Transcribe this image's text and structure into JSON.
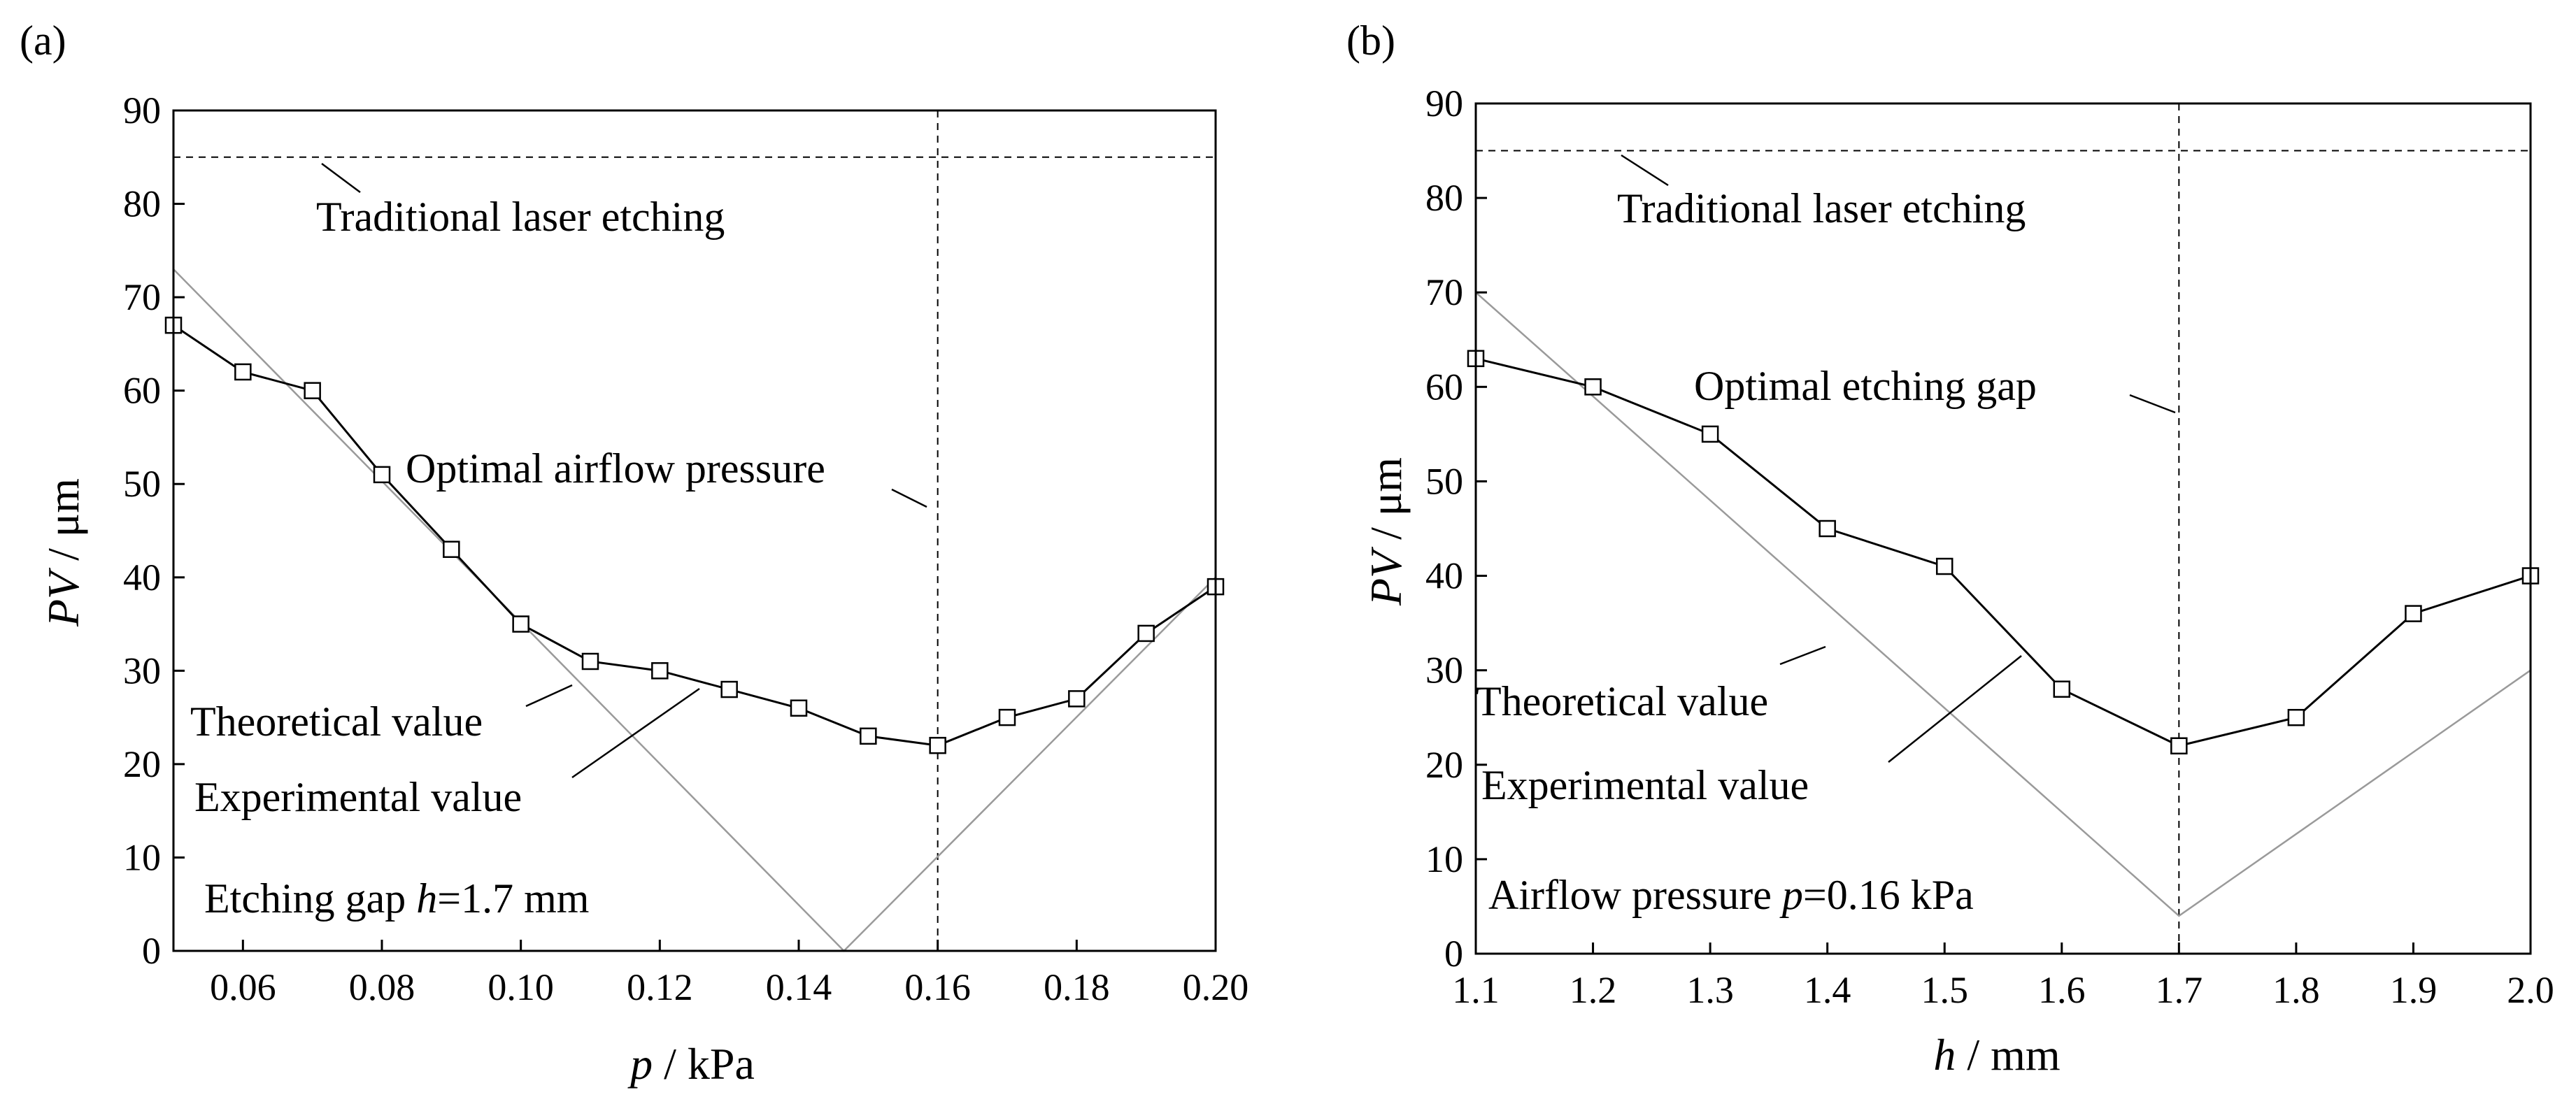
{
  "chart_data": [
    {
      "type": "line",
      "panel_label": "(a)",
      "xlabel_var": "p",
      "xlabel_unit": " / kPa",
      "ylabel_var": "PV",
      "ylabel_unit": " / μm",
      "xlim": [
        0.05,
        0.2
      ],
      "ylim": [
        0,
        90
      ],
      "xticks": [
        0.06,
        0.08,
        0.1,
        0.12,
        0.14,
        0.16,
        0.18,
        0.2
      ],
      "xtick_labels": [
        "0.06",
        "0.08",
        "0.10",
        "0.12",
        "0.14",
        "0.16",
        "0.18",
        "0.20"
      ],
      "yticks": [
        0,
        10,
        20,
        30,
        40,
        50,
        60,
        70,
        80,
        90
      ],
      "ytick_labels": [
        "0",
        "10",
        "20",
        "30",
        "40",
        "50",
        "60",
        "70",
        "80",
        "90"
      ],
      "series": [
        {
          "name": "Experimental value",
          "x": [
            0.05,
            0.06,
            0.07,
            0.08,
            0.09,
            0.1,
            0.11,
            0.12,
            0.13,
            0.14,
            0.15,
            0.16,
            0.17,
            0.18,
            0.19,
            0.2
          ],
          "y": [
            67,
            62,
            60,
            51,
            43,
            35,
            31,
            30,
            28,
            26,
            23,
            22,
            25,
            27,
            34,
            39
          ]
        },
        {
          "name": "Theoretical value",
          "x": [
            0.05,
            0.1465,
            0.2
          ],
          "y": [
            73,
            0,
            40
          ]
        }
      ],
      "reference_lines": [
        {
          "name": "Traditional laser etching",
          "orientation": "horizontal",
          "value": 85
        },
        {
          "name": "Optimal airflow pressure",
          "orientation": "vertical",
          "value": 0.16
        }
      ],
      "annotations": {
        "traditional": "Traditional laser etching",
        "optimal": "Optimal airflow pressure",
        "theoretical": "Theoretical value",
        "experimental": "Experimental value",
        "condition_prefix": "Etching gap ",
        "condition_var": "h",
        "condition_suffix": "=1.7 mm"
      }
    },
    {
      "type": "line",
      "panel_label": "(b)",
      "xlabel_var": "h",
      "xlabel_unit": " / mm",
      "ylabel_var": "PV",
      "ylabel_unit": " / μm",
      "xlim": [
        1.1,
        2.0
      ],
      "ylim": [
        0,
        90
      ],
      "xticks": [
        1.1,
        1.2,
        1.3,
        1.4,
        1.5,
        1.6,
        1.7,
        1.8,
        1.9,
        2.0
      ],
      "xtick_labels": [
        "1.1",
        "1.2",
        "1.3",
        "1.4",
        "1.5",
        "1.6",
        "1.7",
        "1.8",
        "1.9",
        "2.0"
      ],
      "yticks": [
        0,
        10,
        20,
        30,
        40,
        50,
        60,
        70,
        80,
        90
      ],
      "ytick_labels": [
        "0",
        "10",
        "20",
        "30",
        "40",
        "50",
        "60",
        "70",
        "80",
        "90"
      ],
      "series": [
        {
          "name": "Experimental value",
          "x": [
            1.1,
            1.2,
            1.3,
            1.4,
            1.5,
            1.6,
            1.7,
            1.8,
            1.9,
            2.0
          ],
          "y": [
            63,
            60,
            55,
            45,
            41,
            28,
            22,
            25,
            36,
            40
          ]
        },
        {
          "name": "Theoretical value",
          "x": [
            1.1,
            1.7,
            2.0
          ],
          "y": [
            70,
            4,
            30
          ]
        }
      ],
      "reference_lines": [
        {
          "name": "Traditional laser etching",
          "orientation": "horizontal",
          "value": 85
        },
        {
          "name": "Optimal etching gap",
          "orientation": "vertical",
          "value": 1.7
        }
      ],
      "annotations": {
        "traditional": "Traditional laser etching",
        "optimal": "Optimal etching gap",
        "theoretical": "Theoretical value",
        "experimental": "Experimental value",
        "condition_prefix": "Airflow pressure ",
        "condition_var": "p",
        "condition_suffix": "=0.16 kPa"
      }
    }
  ]
}
